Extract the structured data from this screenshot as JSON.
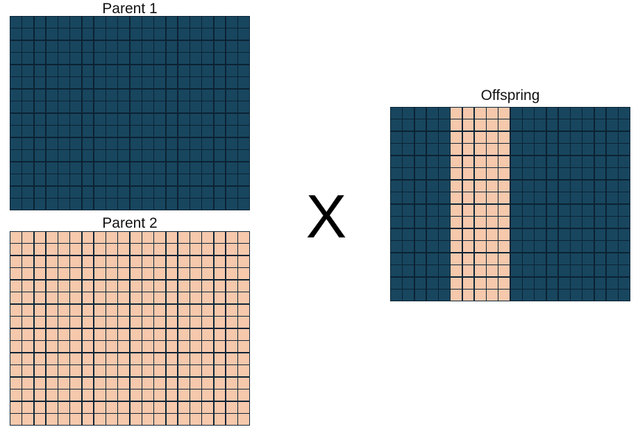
{
  "colors": {
    "dark": "#18465f",
    "light": "#f6c8ac",
    "gridline": "#0b2233"
  },
  "parent1": {
    "label": "Parent 1",
    "fill": "dark"
  },
  "parent2": {
    "label": "Parent 2",
    "fill": "light"
  },
  "offspring": {
    "label": "Offspring",
    "segments": [
      {
        "fill": "dark",
        "columns": 5
      },
      {
        "fill": "light",
        "columns": 5
      },
      {
        "fill": "dark",
        "columns": 10
      }
    ]
  },
  "grid": {
    "rows": 16,
    "columns": 20
  },
  "operator": "X"
}
